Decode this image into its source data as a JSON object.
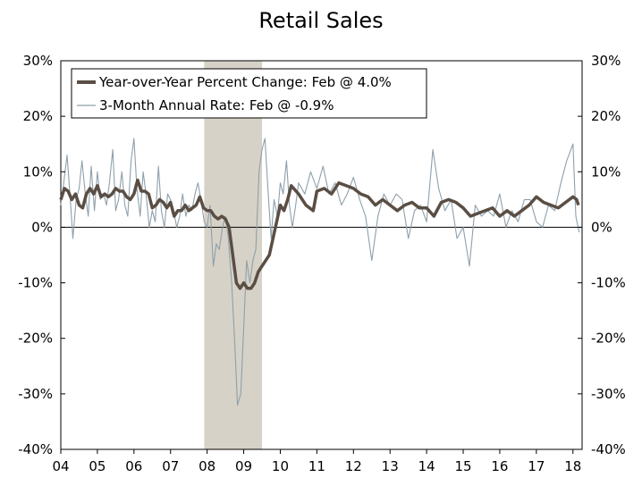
{
  "chart_data": {
    "type": "line",
    "title": "Retail Sales",
    "xlabel": "",
    "ylabel": "",
    "x_start": 2004.0,
    "x_end": 2018.25,
    "ylim": [
      -40,
      30
    ],
    "y_ticks": [
      30,
      20,
      10,
      0,
      -10,
      -20,
      -30,
      -40
    ],
    "y_tick_labels": [
      "30%",
      "20%",
      "10%",
      "0%",
      "-10%",
      "-20%",
      "-30%",
      "-40%"
    ],
    "x_ticks": [
      2004,
      2005,
      2006,
      2007,
      2008,
      2009,
      2010,
      2011,
      2012,
      2013,
      2014,
      2015,
      2016,
      2017,
      2018
    ],
    "x_tick_labels": [
      "04",
      "05",
      "06",
      "07",
      "08",
      "09",
      "10",
      "11",
      "12",
      "13",
      "14",
      "15",
      "16",
      "17",
      "18"
    ],
    "recession": {
      "start": 2007.92,
      "end": 2009.5
    },
    "colors": {
      "yoy": "#5a4e44",
      "three_month": "#8ea0ab",
      "recession": "#d7d2c7"
    },
    "legend": {
      "position": "top-left"
    },
    "series": [
      {
        "name": "Year-over-Year Percent Change: Feb @ 4.0%",
        "type": "line",
        "x": [
          2004.0,
          2004.1,
          2004.2,
          2004.3,
          2004.4,
          2004.5,
          2004.6,
          2004.7,
          2004.8,
          2004.9,
          2005.0,
          2005.1,
          2005.2,
          2005.3,
          2005.4,
          2005.5,
          2005.6,
          2005.7,
          2005.8,
          2005.9,
          2006.0,
          2006.1,
          2006.2,
          2006.3,
          2006.4,
          2006.5,
          2006.6,
          2006.7,
          2006.8,
          2006.9,
          2007.0,
          2007.1,
          2007.2,
          2007.3,
          2007.4,
          2007.5,
          2007.6,
          2007.7,
          2007.8,
          2007.9,
          2008.0,
          2008.1,
          2008.2,
          2008.3,
          2008.4,
          2008.5,
          2008.6,
          2008.7,
          2008.8,
          2008.9,
          2009.0,
          2009.1,
          2009.2,
          2009.3,
          2009.4,
          2009.5,
          2009.6,
          2009.7,
          2009.8,
          2009.9,
          2010.0,
          2010.1,
          2010.2,
          2010.3,
          2010.5,
          2010.7,
          2010.9,
          2011.0,
          2011.2,
          2011.4,
          2011.6,
          2011.8,
          2012.0,
          2012.2,
          2012.4,
          2012.6,
          2012.8,
          2013.0,
          2013.2,
          2013.4,
          2013.6,
          2013.8,
          2014.0,
          2014.2,
          2014.4,
          2014.6,
          2014.8,
          2015.0,
          2015.2,
          2015.4,
          2015.6,
          2015.8,
          2016.0,
          2016.2,
          2016.4,
          2016.6,
          2016.8,
          2017.0,
          2017.2,
          2017.4,
          2017.6,
          2017.8,
          2018.0,
          2018.1,
          2018.15
        ],
        "y": [
          5,
          7,
          6.5,
          5,
          6,
          4,
          3.5,
          6,
          7,
          6,
          7.5,
          5.5,
          6,
          5.5,
          6,
          7,
          6.5,
          6.5,
          5.5,
          5,
          6,
          8.5,
          6.5,
          6.5,
          6,
          3.5,
          4,
          5,
          4.5,
          3.5,
          4.5,
          2,
          3,
          3,
          4,
          3,
          3.5,
          4,
          5.5,
          3.5,
          3,
          3,
          2,
          1.5,
          2,
          1.5,
          0,
          -5,
          -10,
          -11,
          -10,
          -11,
          -11,
          -10,
          -8,
          -7,
          -6,
          -5,
          -2,
          1,
          4,
          3,
          5,
          7.5,
          6,
          4,
          3,
          6.5,
          7,
          6,
          8,
          7.5,
          7,
          6,
          5.5,
          4,
          5,
          4,
          3,
          4,
          4.5,
          3.5,
          3.5,
          2,
          4.5,
          5,
          4.5,
          3.5,
          2,
          2.5,
          3,
          3.5,
          2,
          3,
          2,
          3,
          4,
          5.5,
          4.5,
          4,
          3.5,
          4.5,
          5.5,
          5,
          4
        ]
      },
      {
        "name": "3-Month Annual Rate: Feb @ -0.9%",
        "type": "line",
        "x": [
          2004.0,
          2004.08,
          2004.17,
          2004.25,
          2004.33,
          2004.42,
          2004.5,
          2004.58,
          2004.67,
          2004.75,
          2004.83,
          2004.92,
          2005.0,
          2005.08,
          2005.17,
          2005.25,
          2005.33,
          2005.42,
          2005.5,
          2005.58,
          2005.67,
          2005.75,
          2005.83,
          2005.92,
          2006.0,
          2006.08,
          2006.17,
          2006.25,
          2006.33,
          2006.42,
          2006.5,
          2006.58,
          2006.67,
          2006.75,
          2006.83,
          2006.92,
          2007.0,
          2007.08,
          2007.17,
          2007.25,
          2007.33,
          2007.42,
          2007.5,
          2007.58,
          2007.67,
          2007.75,
          2007.83,
          2007.92,
          2008.0,
          2008.08,
          2008.17,
          2008.25,
          2008.33,
          2008.42,
          2008.5,
          2008.58,
          2008.67,
          2008.75,
          2008.83,
          2008.92,
          2009.0,
          2009.08,
          2009.17,
          2009.25,
          2009.33,
          2009.42,
          2009.5,
          2009.58,
          2009.67,
          2009.75,
          2009.83,
          2009.92,
          2010.0,
          2010.08,
          2010.17,
          2010.25,
          2010.33,
          2010.42,
          2010.5,
          2010.67,
          2010.83,
          2011.0,
          2011.17,
          2011.33,
          2011.5,
          2011.67,
          2011.83,
          2012.0,
          2012.17,
          2012.33,
          2012.5,
          2012.67,
          2012.83,
          2013.0,
          2013.17,
          2013.33,
          2013.5,
          2013.67,
          2013.83,
          2014.0,
          2014.17,
          2014.33,
          2014.5,
          2014.67,
          2014.83,
          2015.0,
          2015.17,
          2015.33,
          2015.5,
          2015.67,
          2015.83,
          2016.0,
          2016.17,
          2016.33,
          2016.5,
          2016.67,
          2016.83,
          2017.0,
          2017.17,
          2017.33,
          2017.5,
          2017.67,
          2017.83,
          2018.0,
          2018.08,
          2018.17
        ],
        "y": [
          4,
          8,
          13,
          6,
          -2,
          5,
          7,
          12,
          6,
          2,
          11,
          3,
          10,
          5,
          6,
          4,
          8,
          14,
          3,
          5,
          10,
          4,
          2,
          12,
          16,
          7,
          2,
          10,
          6,
          0,
          3,
          1,
          11,
          3,
          0,
          6,
          5,
          3,
          0,
          2,
          6,
          2,
          4,
          3,
          6,
          8,
          5,
          1,
          0,
          4,
          -7,
          -3,
          -4,
          0,
          2,
          -2,
          -10,
          -20,
          -32,
          -30,
          -18,
          -6,
          -10,
          -6,
          -4,
          10,
          14,
          16,
          6,
          -2,
          5,
          2,
          8,
          6,
          12,
          4,
          0,
          4,
          8,
          6,
          10,
          7,
          11,
          6,
          8,
          4,
          6,
          9,
          5,
          2,
          -6,
          2,
          6,
          4,
          6,
          5,
          -2,
          3,
          4,
          1,
          14,
          7,
          3,
          5,
          -2,
          0,
          -7,
          4,
          2,
          3,
          2,
          6,
          0,
          3,
          1,
          5,
          5,
          1,
          0,
          4,
          3,
          8,
          12,
          15,
          2,
          -0.9
        ]
      }
    ]
  }
}
